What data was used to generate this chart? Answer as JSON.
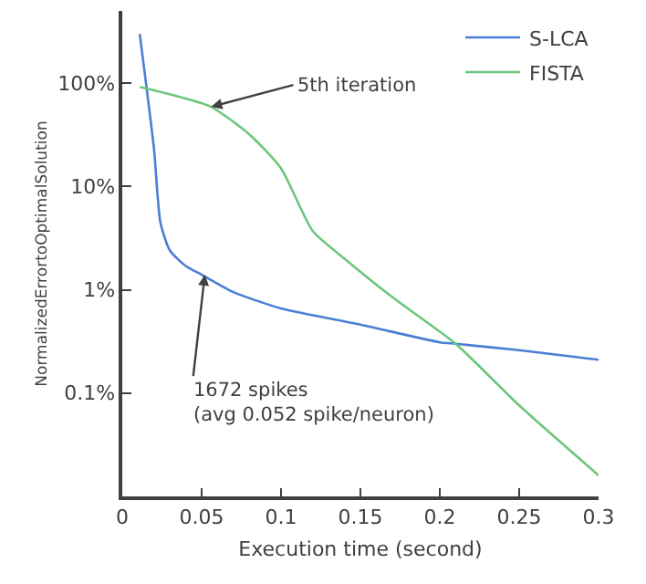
{
  "chart_data": {
    "type": "line",
    "xlabel": "Execution time (second)",
    "ylabel": "NormalizedErrortoOptimalSolution",
    "series": [
      {
        "name": "S-LCA",
        "color": "#4a7fd4",
        "x": [
          0.011,
          0.02,
          0.024,
          0.03,
          0.04,
          0.05,
          0.07,
          0.1,
          0.15,
          0.2,
          0.21,
          0.25,
          0.3
        ],
        "values": [
          300,
          23,
          4.5,
          2.4,
          1.7,
          1.4,
          0.95,
          0.66,
          0.46,
          0.31,
          0.3,
          0.26,
          0.21
        ]
      },
      {
        "name": "FISTA",
        "color": "#6cc77c",
        "x": [
          0.011,
          0.03,
          0.056,
          0.08,
          0.1,
          0.12,
          0.14,
          0.17,
          0.21,
          0.25,
          0.3
        ],
        "values": [
          92,
          78,
          59,
          32,
          15,
          3.7,
          2,
          0.85,
          0.3,
          0.076,
          0.016
        ]
      }
    ],
    "log": "y",
    "xlim": [
      0,
      0.3
    ],
    "ylim": [
      0.01,
      500
    ],
    "xticks": [
      0,
      0.05,
      0.1,
      0.15,
      0.2,
      0.25,
      0.3
    ],
    "yticks": [
      {
        "value": 0.1,
        "label": "0.1%"
      },
      {
        "value": 1,
        "label": "1%"
      },
      {
        "value": 10,
        "label": "10%"
      },
      {
        "value": 100,
        "label": "100%"
      }
    ],
    "legend": "top right",
    "annotations": [
      {
        "text": "5th iteration",
        "x": 0.056,
        "y": 59
      },
      {
        "text": "1672 spikes\n(avg 0.052 spike/neuron)",
        "x": 0.052,
        "y": 1.4
      }
    ]
  }
}
